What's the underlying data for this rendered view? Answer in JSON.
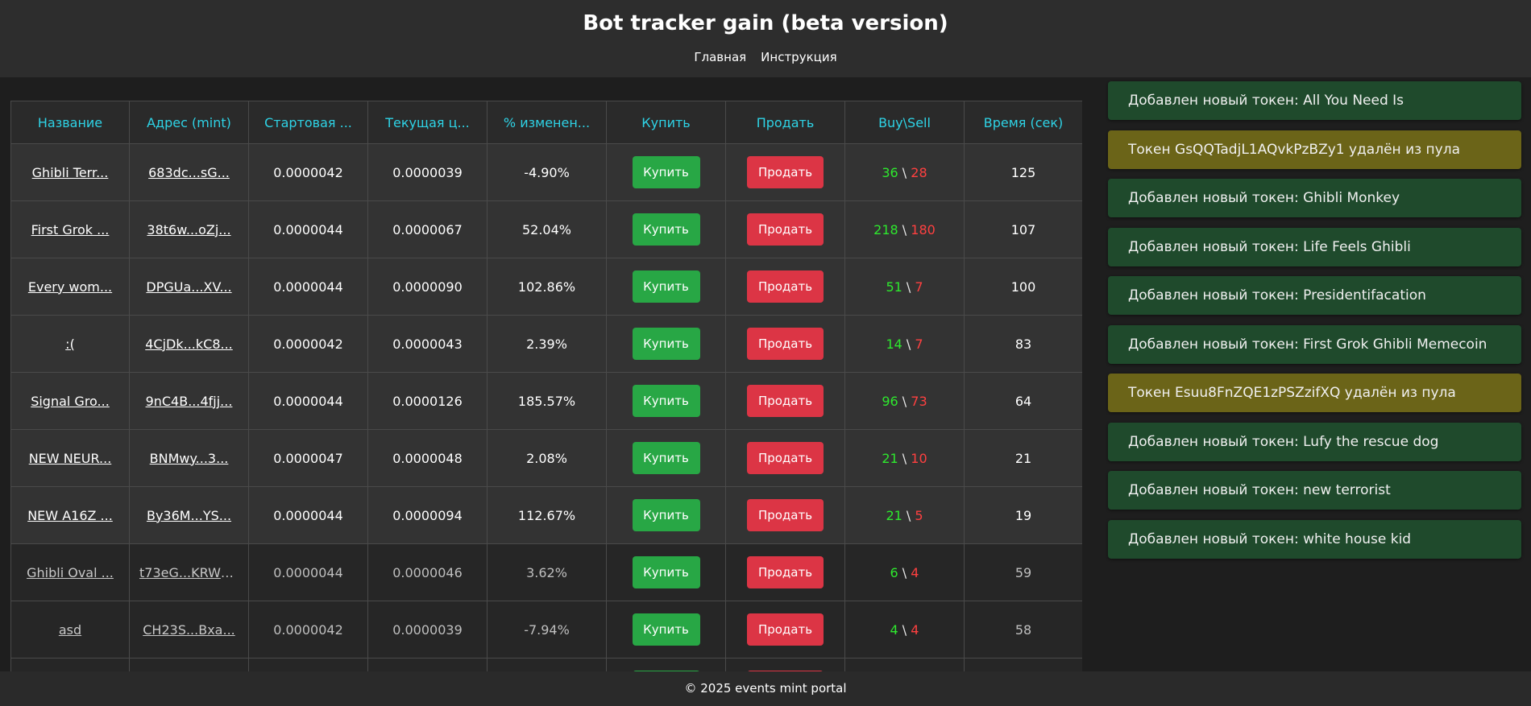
{
  "header": {
    "title": "Bot tracker gain (beta version)",
    "nav": [
      "Главная",
      "Инструкция"
    ]
  },
  "table": {
    "columns": [
      "Название",
      "Адрес (mint)",
      "Стартовая ...",
      "Текущая ц...",
      "% изменен...",
      "Купить",
      "Продать",
      "Buy\\Sell",
      "Время (сек)"
    ],
    "buy_label": "Купить",
    "sell_label": "Продать",
    "rows": [
      {
        "name": "Ghibli Terr...",
        "mint": "683dc...sG...",
        "start": "0.0000042",
        "current": "0.0000039",
        "change": "-4.90%",
        "trend": "neg",
        "buys": "36",
        "sells": "28",
        "time": "125",
        "style": "hl"
      },
      {
        "name": "First Grok ...",
        "mint": "38t6w...oZj...",
        "start": "0.0000044",
        "current": "0.0000067",
        "change": "52.04%",
        "trend": "pos",
        "buys": "218",
        "sells": "180",
        "time": "107",
        "style": "hl"
      },
      {
        "name": "Every wom...",
        "mint": "DPGUa...XV...",
        "start": "0.0000044",
        "current": "0.0000090",
        "change": "102.86%",
        "trend": "pos",
        "buys": "51",
        "sells": "7",
        "time": "100",
        "style": "hl"
      },
      {
        "name": ":(",
        "mint": "4CjDk...kC8...",
        "start": "0.0000042",
        "current": "0.0000043",
        "change": "2.39%",
        "trend": "pos",
        "buys": "14",
        "sells": "7",
        "time": "83",
        "style": "hl"
      },
      {
        "name": "Signal Gro...",
        "mint": "9nC4B...4fjj...",
        "start": "0.0000044",
        "current": "0.0000126",
        "change": "185.57%",
        "trend": "pos",
        "buys": "96",
        "sells": "73",
        "time": "64",
        "style": "hl"
      },
      {
        "name": "NEW NEUR...",
        "mint": "BNMwy...3...",
        "start": "0.0000047",
        "current": "0.0000048",
        "change": "2.08%",
        "trend": "pos",
        "buys": "21",
        "sells": "10",
        "time": "21",
        "style": "hl"
      },
      {
        "name": "NEW A16Z ...",
        "mint": "By36M...YS...",
        "start": "0.0000044",
        "current": "0.0000094",
        "change": "112.67%",
        "trend": "pos",
        "buys": "21",
        "sells": "5",
        "time": "19",
        "style": "hl"
      },
      {
        "name": "Ghibli Oval ...",
        "mint": "t73eG...KRW7...",
        "start": "0.0000044",
        "current": "0.0000046",
        "change": "3.62%",
        "trend": "pos",
        "buys": "6",
        "sells": "4",
        "time": "59",
        "style": "dim"
      },
      {
        "name": "asd",
        "mint": "CH23S...Bxa...",
        "start": "0.0000042",
        "current": "0.0000039",
        "change": "-7.94%",
        "trend": "neg",
        "buys": "4",
        "sells": "4",
        "time": "58",
        "style": "dim"
      },
      {
        "name": "",
        "mint": "",
        "start": "",
        "current": "",
        "change": "",
        "trend": "pos",
        "buys": "",
        "sells": "",
        "time": "",
        "style": "dim"
      }
    ]
  },
  "feed": [
    {
      "text": "Добавлен новый токен: All You Need Is",
      "type": "added"
    },
    {
      "text": "Токен GsQQTadjL1AQvkPzBZy1 удалён из пула",
      "type": "removed"
    },
    {
      "text": "Добавлен новый токен: Ghibli Monkey",
      "type": "added"
    },
    {
      "text": "Добавлен новый токен: Life Feels Ghibli",
      "type": "added"
    },
    {
      "text": "Добавлен новый токен: Presidentifacation",
      "type": "added"
    },
    {
      "text": "Добавлен новый токен: First Grok Ghibli Memecoin",
      "type": "added"
    },
    {
      "text": "Токен Esuu8FnZQE1zPSZzifXQ удалён из пула",
      "type": "removed"
    },
    {
      "text": "Добавлен новый токен: Lufy the rescue dog",
      "type": "added"
    },
    {
      "text": "Добавлен новый токен: new terrorist",
      "type": "added"
    },
    {
      "text": "Добавлен новый токен: white house kid",
      "type": "added"
    }
  ],
  "footer": {
    "text": "© 2025 events mint portal"
  },
  "colors": {
    "accent": "#2ed3e6",
    "positive": "#2ee82e",
    "negative": "#ff4040",
    "buy_button": "#28a745",
    "sell_button": "#dc3545",
    "added_bg": "#1f4a2c",
    "removed_bg": "#6b6418"
  }
}
